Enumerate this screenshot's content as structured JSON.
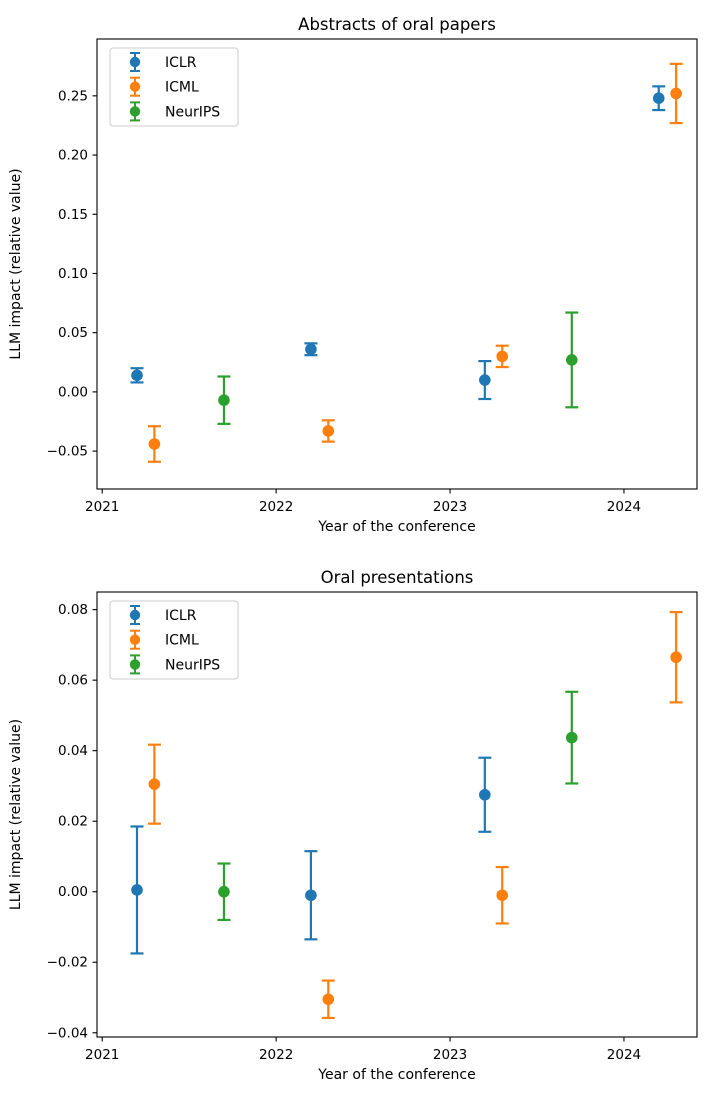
{
  "page": {
    "background": "#ffffff"
  },
  "colors": {
    "ICLR": "#1f77b4",
    "ICML": "#ff7f0e",
    "NeurIPS": "#2ca02c",
    "axis": "#000000",
    "legend_border": "#cccccc",
    "legend_bg": "#ffffff"
  },
  "chart_data": [
    {
      "id": "abstracts",
      "type": "scatter",
      "subtype": "errorbar-points",
      "title": "Abstracts of oral papers",
      "xlabel": "Year of the conference",
      "ylabel": "LLM impact (relative value)",
      "xlim": [
        2020.97,
        2024.42
      ],
      "ylim": [
        -0.082,
        0.298
      ],
      "grid": false,
      "legend": {
        "position": "upper left",
        "entries": [
          "ICLR",
          "ICML",
          "NeurIPS"
        ]
      },
      "xticks": [
        {
          "v": 2021,
          "label": "2021"
        },
        {
          "v": 2022,
          "label": "2022"
        },
        {
          "v": 2023,
          "label": "2023"
        },
        {
          "v": 2024,
          "label": "2024"
        }
      ],
      "yticks": [
        {
          "v": -0.05,
          "label": "−0.05"
        },
        {
          "v": 0.0,
          "label": "0.00"
        },
        {
          "v": 0.05,
          "label": "0.05"
        },
        {
          "v": 0.1,
          "label": "0.10"
        },
        {
          "v": 0.15,
          "label": "0.15"
        },
        {
          "v": 0.2,
          "label": "0.20"
        },
        {
          "v": 0.25,
          "label": "0.25"
        }
      ],
      "series": [
        {
          "name": "ICLR",
          "color": "#1f77b4",
          "points": [
            {
              "x": 2021.2,
              "y": 0.014,
              "yerr": 0.006
            },
            {
              "x": 2022.2,
              "y": 0.036,
              "yerr": 0.005
            },
            {
              "x": 2023.2,
              "y": 0.01,
              "yerr": 0.016
            },
            {
              "x": 2024.2,
              "y": 0.248,
              "yerr": 0.01
            }
          ]
        },
        {
          "name": "ICML",
          "color": "#ff7f0e",
          "points": [
            {
              "x": 2021.3,
              "y": -0.044,
              "yerr": 0.015
            },
            {
              "x": 2022.3,
              "y": -0.033,
              "yerr": 0.009
            },
            {
              "x": 2023.3,
              "y": 0.03,
              "yerr": 0.009
            },
            {
              "x": 2024.3,
              "y": 0.252,
              "yerr": 0.025
            }
          ]
        },
        {
          "name": "NeurIPS",
          "color": "#2ca02c",
          "points": [
            {
              "x": 2021.7,
              "y": -0.007,
              "yerr": 0.02
            },
            {
              "x": 2023.7,
              "y": 0.027,
              "yerr": 0.04
            }
          ]
        }
      ]
    },
    {
      "id": "orals",
      "type": "scatter",
      "subtype": "errorbar-points",
      "title": "Oral presentations",
      "xlabel": "Year of the conference",
      "ylabel": "LLM impact (relative value)",
      "xlim": [
        2020.97,
        2024.42
      ],
      "ylim": [
        -0.0412,
        0.085
      ],
      "grid": false,
      "legend": {
        "position": "upper left",
        "entries": [
          "ICLR",
          "ICML",
          "NeurIPS"
        ]
      },
      "xticks": [
        {
          "v": 2021,
          "label": "2021"
        },
        {
          "v": 2022,
          "label": "2022"
        },
        {
          "v": 2023,
          "label": "2023"
        },
        {
          "v": 2024,
          "label": "2024"
        }
      ],
      "yticks": [
        {
          "v": -0.04,
          "label": "−0.04"
        },
        {
          "v": -0.02,
          "label": "−0.02"
        },
        {
          "v": 0.0,
          "label": "0.00"
        },
        {
          "v": 0.02,
          "label": "0.02"
        },
        {
          "v": 0.04,
          "label": "0.04"
        },
        {
          "v": 0.06,
          "label": "0.06"
        },
        {
          "v": 0.08,
          "label": "0.08"
        }
      ],
      "series": [
        {
          "name": "ICLR",
          "color": "#1f77b4",
          "points": [
            {
              "x": 2021.2,
              "y": 0.0005,
              "yerr": 0.018
            },
            {
              "x": 2022.2,
              "y": -0.001,
              "yerr": 0.0125
            },
            {
              "x": 2023.2,
              "y": 0.0275,
              "yerr": 0.0105
            }
          ]
        },
        {
          "name": "ICML",
          "color": "#ff7f0e",
          "points": [
            {
              "x": 2021.3,
              "y": 0.0305,
              "yerr": 0.0112
            },
            {
              "x": 2022.3,
              "y": -0.0305,
              "yerr": 0.0053
            },
            {
              "x": 2023.3,
              "y": -0.001,
              "yerr": 0.008
            },
            {
              "x": 2024.3,
              "y": 0.0665,
              "yerr": 0.0128
            }
          ]
        },
        {
          "name": "NeurIPS",
          "color": "#2ca02c",
          "points": [
            {
              "x": 2021.7,
              "y": 0.0,
              "yerr": 0.008
            },
            {
              "x": 2023.7,
              "y": 0.0437,
              "yerr": 0.013
            }
          ]
        }
      ]
    }
  ]
}
